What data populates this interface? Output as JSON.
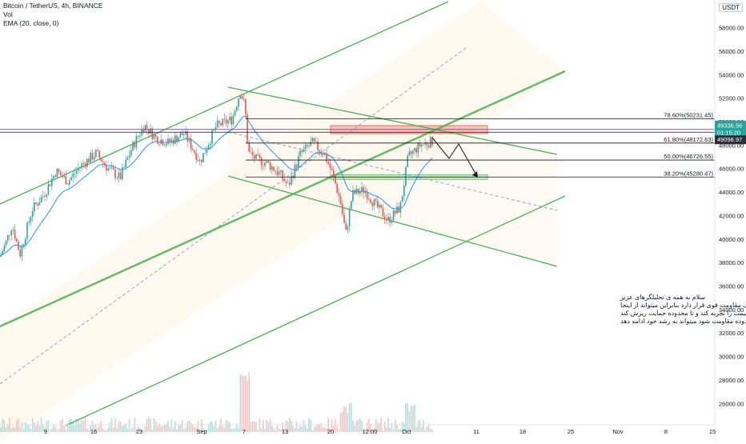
{
  "legend": {
    "title": "Bitcoin / TetherUS, 4h, BINANCE",
    "vol": "Vol",
    "ema": "EMA (20, close, 0)"
  },
  "currency": "USDT",
  "colors": {
    "up": "#26a69a",
    "down": "#ef5350",
    "ema": "#2196f3",
    "channel": "#4caf50",
    "fib": "#131722",
    "resistance_zone": "#ef5350",
    "support_zone": "#a5d6a7",
    "current_price_bg": "#26a69a",
    "level_price_bg": "#2a2e39"
  },
  "price_axis": {
    "ticks": [
      "58000.00",
      "56000.00",
      "54000.00",
      "52000.00",
      "50000.00",
      "48000.00",
      "46000.00",
      "44000.00",
      "42000.00",
      "40000.00",
      "38000.00",
      "36000.00",
      "34000.00",
      "32000.00",
      "30000.00",
      "28000.00",
      "26000.00"
    ],
    "current_price": "49336.56",
    "countdown": "01:15:20",
    "level_price": "49098.97"
  },
  "time_axis": {
    "ticks": [
      "9",
      "16",
      "23",
      "Sep",
      "7",
      "13",
      "20",
      "12:00",
      "Oct",
      "11",
      "18",
      "25",
      "Nov",
      "8",
      "15"
    ]
  },
  "fib_levels": [
    {
      "label": "78.60%(50231.45)",
      "price": 50231.45
    },
    {
      "label": "61.80%(48172.63)",
      "price": 48172.63
    },
    {
      "label": "50.00%(46726.55)",
      "price": 46726.55
    },
    {
      "label": "38.20%(45280.47)",
      "price": 45280.47
    }
  ],
  "annotation": {
    "lines": [
      "سلام به همه ی تحلیلگرهای عزیز",
      "بیتکوین زیر یک مقاومت قوی قرار دارد بنابراین میتواند از اینجا",
      "یک اصلاح قیمت را تجربه کند و تا محدوده حمایت ریزش کند",
      "ولی اگر موفق به شکستن محدوده مقاومت شود میتواند به رشد خود ادامه دهد"
    ]
  },
  "chart_data": {
    "type": "candlestick",
    "title": "Bitcoin / TetherUS, 4h, BINANCE",
    "ylim": [
      25000,
      59000
    ],
    "price_path": [
      [
        0,
        38500
      ],
      [
        8,
        39800
      ],
      [
        15,
        41200
      ],
      [
        25,
        38700
      ],
      [
        40,
        42500
      ],
      [
        55,
        43800
      ],
      [
        70,
        45800
      ],
      [
        85,
        44900
      ],
      [
        100,
        46200
      ],
      [
        120,
        47300
      ],
      [
        135,
        46000
      ],
      [
        150,
        45200
      ],
      [
        165,
        47800
      ],
      [
        180,
        49700
      ],
      [
        195,
        48600
      ],
      [
        210,
        48200
      ],
      [
        230,
        49000
      ],
      [
        250,
        46600
      ],
      [
        270,
        49600
      ],
      [
        290,
        50200
      ],
      [
        300,
        52600
      ],
      [
        306,
        51300
      ],
      [
        310,
        47400
      ],
      [
        320,
        46800
      ],
      [
        335,
        46400
      ],
      [
        350,
        45500
      ],
      [
        360,
        44500
      ],
      [
        375,
        47200
      ],
      [
        390,
        48200
      ],
      [
        405,
        47300
      ],
      [
        415,
        45600
      ],
      [
        425,
        43300
      ],
      [
        432,
        40400
      ],
      [
        440,
        43800
      ],
      [
        455,
        44200
      ],
      [
        470,
        42800
      ],
      [
        485,
        41600
      ],
      [
        500,
        42700
      ],
      [
        510,
        47000
      ],
      [
        525,
        48000
      ],
      [
        540,
        48300
      ]
    ]
  }
}
